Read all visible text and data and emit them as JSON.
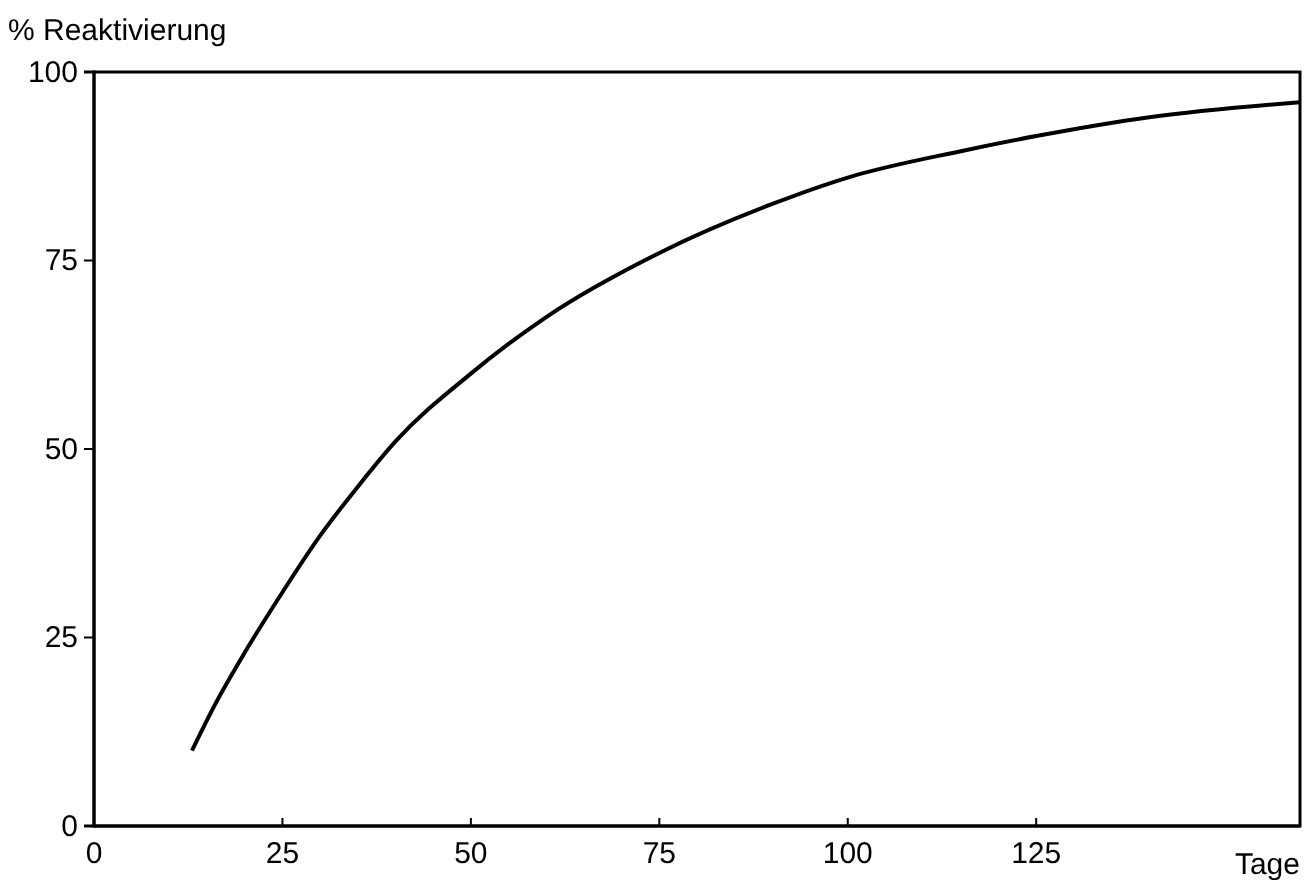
{
  "chart_data": {
    "type": "line",
    "xlabel": "Tage",
    "ylabel": "% Reaktivierung",
    "x": [
      13,
      16,
      20,
      25,
      30,
      35,
      40,
      50,
      60,
      75,
      90,
      100,
      115,
      125,
      140,
      160
    ],
    "series": [
      {
        "color": "#000000",
        "values": [
          10,
          16,
          23,
          31,
          38.5,
          45,
          51,
          60,
          67.5,
          76,
          82.5,
          86,
          89.5,
          91.5,
          94,
          96
        ]
      }
    ],
    "xlim": [
      0,
      160
    ],
    "xticks": [
      0,
      25,
      50,
      75,
      100,
      125
    ],
    "ylim": [
      0,
      100
    ],
    "yticks": [
      0,
      25,
      50,
      75,
      100
    ],
    "marker": "none",
    "line_style": "solid"
  }
}
